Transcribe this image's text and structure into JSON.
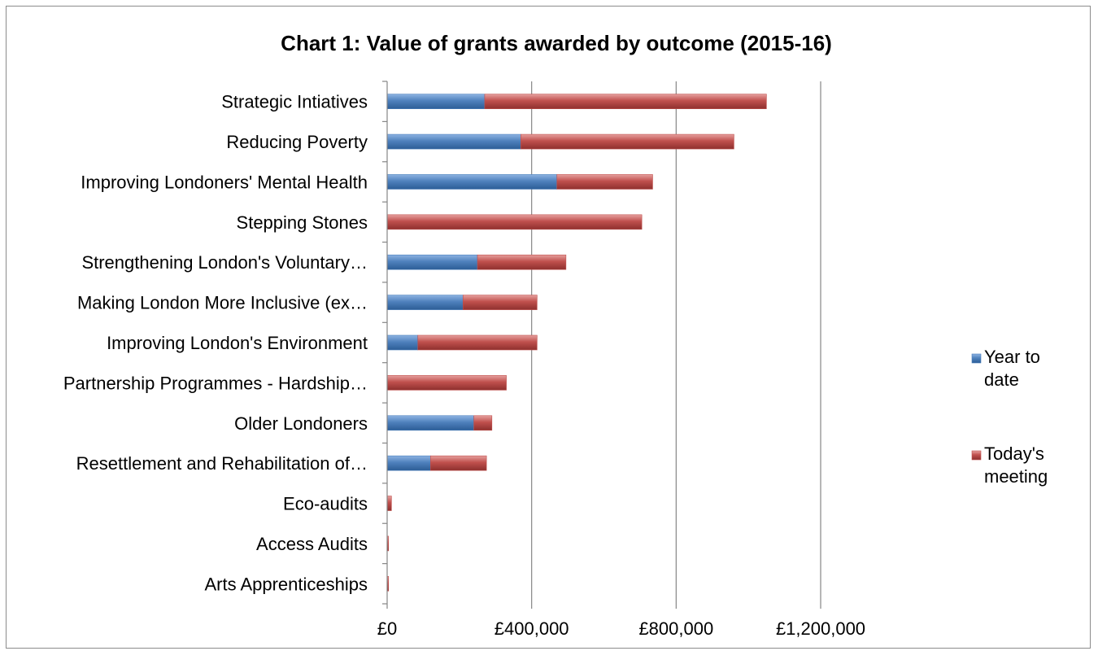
{
  "chart_data": {
    "type": "bar",
    "orientation": "horizontal",
    "stacked": true,
    "title": "Chart 1: Value of grants awarded by outcome (2015-16)",
    "xlabel": "",
    "ylabel": "",
    "xlim": [
      0,
      1200000
    ],
    "ticks": [
      0,
      400000,
      800000,
      1200000
    ],
    "tick_labels": [
      "£0",
      "£400,000",
      "£800,000",
      "£1,200,000"
    ],
    "grid": "vertical",
    "legend_position": "right",
    "categories": [
      "Strategic Intiatives",
      "Reducing Poverty",
      "Improving Londoners' Mental Health",
      "Stepping Stones",
      "Strengthening London's Voluntary…",
      "Making London More Inclusive (ex…",
      "Improving London's Environment",
      "Partnership Programmes - Hardship…",
      "Older Londoners",
      "Resettlement and Rehabilitation of…",
      "Eco-audits",
      "Access Audits",
      "Arts Apprenticeships"
    ],
    "series": [
      {
        "name": "Year to date",
        "legend_lines": [
          "Year to",
          "date"
        ],
        "color": "#4a7ebb",
        "values": [
          270000,
          370000,
          470000,
          0,
          250000,
          210000,
          85000,
          0,
          240000,
          120000,
          0,
          0,
          0
        ]
      },
      {
        "name": "Today's meeting",
        "legend_lines": [
          "Today's",
          "meeting"
        ],
        "color": "#c0504d",
        "values": [
          780000,
          590000,
          265000,
          705000,
          245000,
          205000,
          330000,
          330000,
          50000,
          155000,
          12000,
          4000,
          4000
        ]
      }
    ]
  }
}
